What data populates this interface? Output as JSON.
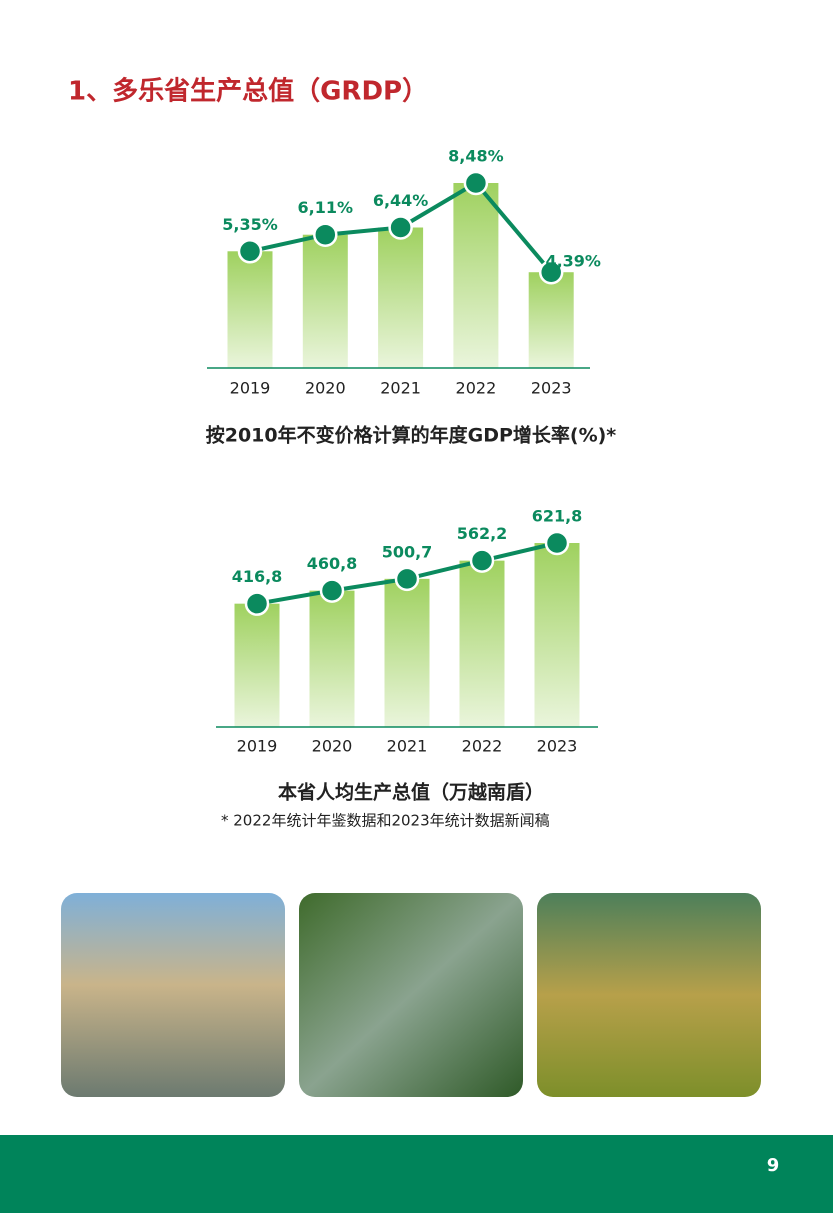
{
  "heading": "1、多乐省生产总值（GRDP）",
  "chart_data": [
    {
      "type": "combo",
      "title": "按2010年不变价格计算的年度GDP增长率(%)*",
      "categories": [
        "2019",
        "2020",
        "2021",
        "2022",
        "2023"
      ],
      "values": [
        5.35,
        6.11,
        6.44,
        8.48,
        4.39
      ],
      "value_labels": [
        "5,35%",
        "6,11%",
        "6,44%",
        "8,48%",
        "4,39%"
      ],
      "bar_color": "#9fd15f",
      "line_color": "#0b8a5e"
    },
    {
      "type": "combo",
      "title": "本省人均生产总值（万越南盾）",
      "categories": [
        "2019",
        "2020",
        "2021",
        "2022",
        "2023"
      ],
      "values": [
        416.8,
        460.8,
        500.7,
        562.2,
        621.8
      ],
      "value_labels": [
        "416,8",
        "460,8",
        "500,7",
        "562,2",
        "621,8"
      ],
      "bar_color": "#9fd15f",
      "line_color": "#0b8a5e"
    }
  ],
  "footnote": "* 2022年统计年鉴数据和2023年统计数据新闻稿",
  "page_number": "9"
}
